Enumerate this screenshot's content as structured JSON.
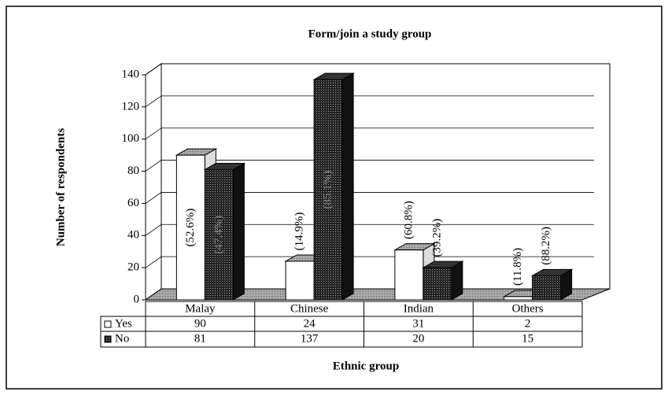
{
  "chart_data": {
    "type": "bar3d",
    "title": "Form/join a study group",
    "y_label": "Number of respondents",
    "x_label": "Ethnic group",
    "categories": [
      "Malay",
      "Chinese",
      "Indian",
      "Others"
    ],
    "series": [
      {
        "name": "Yes",
        "color": "#ffffff",
        "values": [
          90,
          24,
          31,
          2
        ],
        "value_labels": [
          "(52.6%)",
          "(14.9%)",
          "(60.8%)",
          "(11.8%)"
        ]
      },
      {
        "name": "No",
        "color": "#444444",
        "values": [
          81,
          137,
          20,
          15
        ],
        "value_labels": [
          "(47.4%)",
          "(85.1%)",
          "(39.2%)",
          "(88.2%)"
        ]
      }
    ],
    "ylim": [
      0,
      140
    ],
    "yticks": [
      0,
      20,
      40,
      60,
      80,
      100,
      120,
      140
    ],
    "grid": true,
    "data_table": true
  }
}
